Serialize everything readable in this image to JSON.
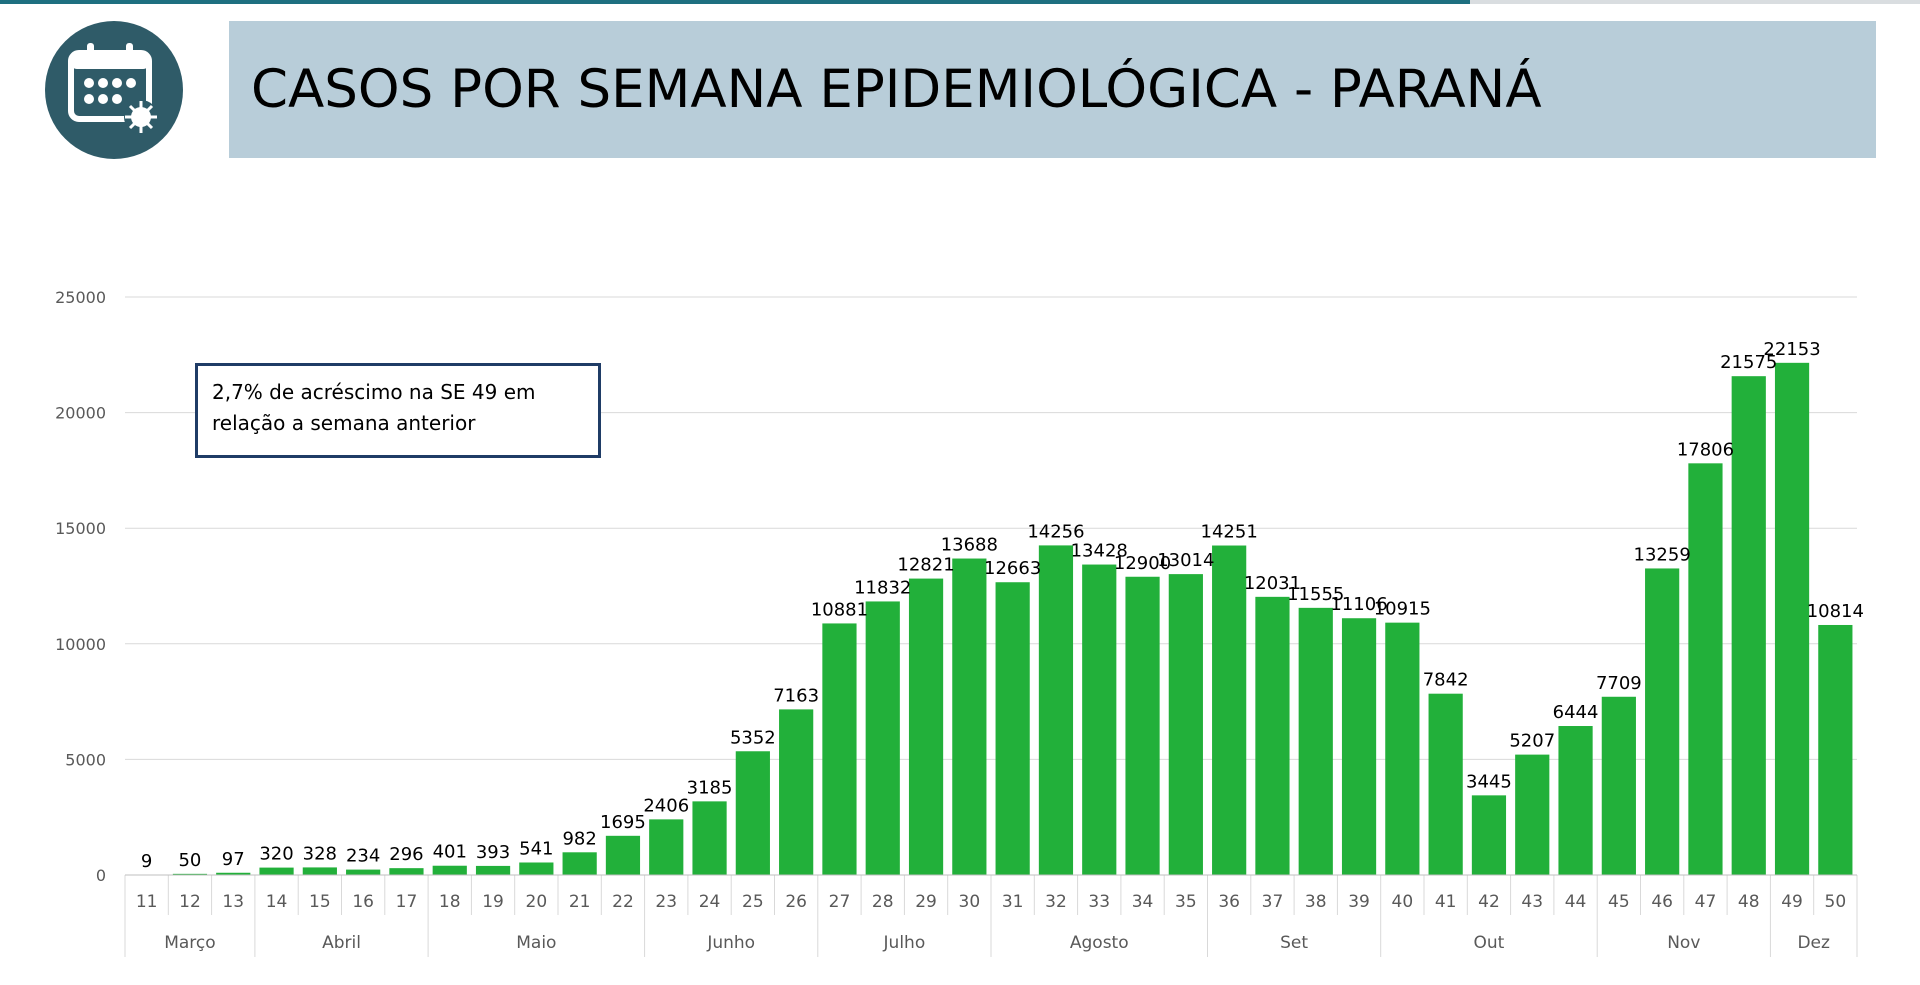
{
  "header": {
    "title": "CASOS POR SEMANA EPIDEMIOLÓGICA - PARANÁ",
    "icon": "calendar-virus-icon"
  },
  "annotation": {
    "line1": "2,7% de acréscimo na SE 49 em",
    "line2": "relação a semana anterior"
  },
  "colors": {
    "bar": "#22b03a",
    "title_bg": "#b8cdd9",
    "logo_bg": "#2f5b68",
    "annotation_border": "#1f3c66"
  },
  "chart_data": {
    "type": "bar",
    "categories": [
      "11",
      "12",
      "13",
      "14",
      "15",
      "16",
      "17",
      "18",
      "19",
      "20",
      "21",
      "22",
      "23",
      "24",
      "25",
      "26",
      "27",
      "28",
      "29",
      "30",
      "31",
      "32",
      "33",
      "34",
      "35",
      "36",
      "37",
      "38",
      "39",
      "40",
      "41",
      "42",
      "43",
      "44",
      "45",
      "46",
      "47",
      "48",
      "49",
      "50"
    ],
    "values": [
      9,
      50,
      97,
      320,
      328,
      234,
      296,
      401,
      393,
      541,
      982,
      1695,
      2406,
      3185,
      5352,
      7163,
      10881,
      11832,
      12821,
      13688,
      12663,
      14256,
      13428,
      12900,
      13014,
      14251,
      12031,
      11555,
      11106,
      10915,
      7842,
      3445,
      5207,
      6444,
      7709,
      13259,
      17806,
      21575,
      22153,
      10814
    ],
    "months": [
      {
        "label": "Março",
        "start": 0,
        "count": 3
      },
      {
        "label": "Abril",
        "start": 3,
        "count": 4
      },
      {
        "label": "Maio",
        "start": 7,
        "count": 5
      },
      {
        "label": "Junho",
        "start": 12,
        "count": 4
      },
      {
        "label": "Julho",
        "start": 16,
        "count": 4
      },
      {
        "label": "Agosto",
        "start": 20,
        "count": 5
      },
      {
        "label": "Set",
        "start": 25,
        "count": 4
      },
      {
        "label": "Out",
        "start": 29,
        "count": 5
      },
      {
        "label": "Nov",
        "start": 34,
        "count": 4
      },
      {
        "label": "Dez",
        "start": 38,
        "count": 2
      }
    ],
    "yticks": [
      0,
      5000,
      10000,
      15000,
      20000,
      25000
    ],
    "ylim": [
      0,
      25000
    ],
    "grid": true,
    "legend": "none"
  }
}
